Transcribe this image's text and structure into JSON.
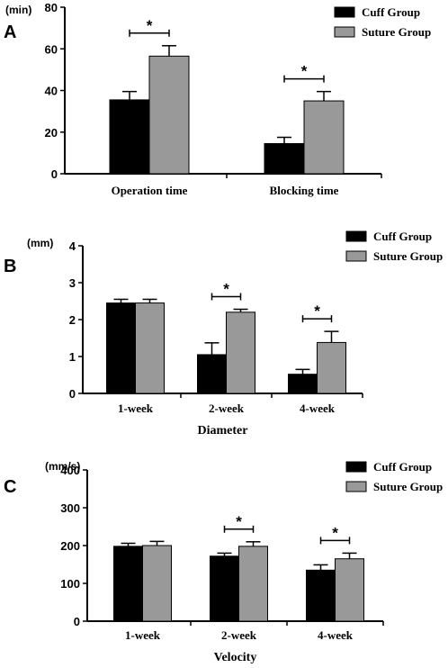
{
  "chart_data": [
    {
      "type": "bar",
      "panel_letter": "A",
      "ylabel": "(min)",
      "xlabel": "",
      "categories": [
        "Operation time",
        "Blocking time"
      ],
      "ylim": [
        0,
        80
      ],
      "yticks": [
        0,
        20,
        40,
        60,
        80
      ],
      "series": [
        {
          "name": "Cuff Group",
          "color": "#000000",
          "values": [
            35.5,
            14.5
          ],
          "errors": [
            4,
            3
          ]
        },
        {
          "name": "Suture Group",
          "color": "#999999",
          "values": [
            56.5,
            35
          ],
          "errors": [
            5,
            4.5
          ]
        }
      ],
      "significance": [
        "*",
        "*"
      ],
      "legend_position": "top-right"
    },
    {
      "type": "bar",
      "panel_letter": "B",
      "ylabel": "(mm)",
      "xlabel": "Diameter",
      "categories": [
        "1-week",
        "2-week",
        "4-week"
      ],
      "ylim": [
        0,
        4
      ],
      "yticks": [
        0,
        1,
        2,
        3,
        4
      ],
      "series": [
        {
          "name": "Cuff Group",
          "color": "#000000",
          "values": [
            2.45,
            1.05,
            0.52
          ],
          "errors": [
            0.1,
            0.32,
            0.13
          ]
        },
        {
          "name": "Suture Group",
          "color": "#999999",
          "values": [
            2.45,
            2.2,
            1.38
          ],
          "errors": [
            0.1,
            0.08,
            0.3
          ]
        }
      ],
      "significance": [
        "",
        "*",
        "*"
      ],
      "legend_position": "top-right"
    },
    {
      "type": "bar",
      "panel_letter": "C",
      "ylabel": "(mm/s)",
      "xlabel": "Velocity",
      "categories": [
        "1-week",
        "2-week",
        "4-week"
      ],
      "ylim": [
        0,
        400
      ],
      "yticks": [
        0,
        100,
        200,
        300,
        400
      ],
      "series": [
        {
          "name": "Cuff Group",
          "color": "#000000",
          "values": [
            198,
            172,
            135
          ],
          "errors": [
            8,
            8,
            14
          ]
        },
        {
          "name": "Suture Group",
          "color": "#999999",
          "values": [
            200,
            198,
            165
          ],
          "errors": [
            11,
            12,
            15
          ]
        }
      ],
      "significance": [
        "",
        "*",
        "*"
      ],
      "legend_position": "top-right"
    }
  ]
}
